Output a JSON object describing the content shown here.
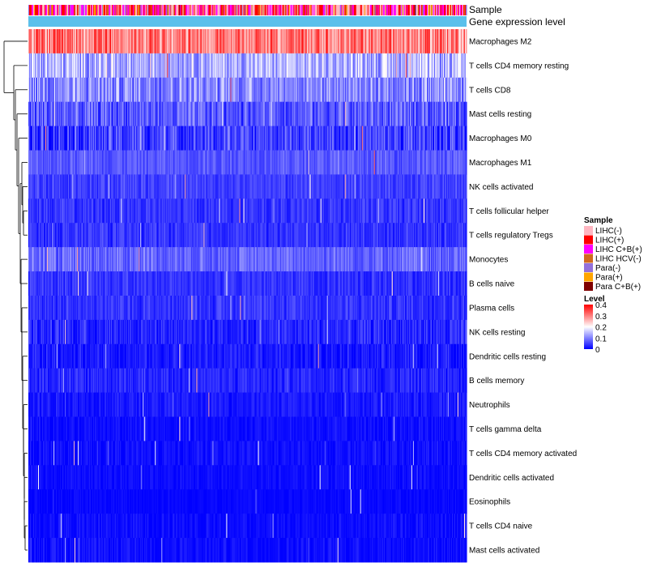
{
  "chart_data": {
    "type": "heatmap",
    "title": "",
    "annotation_tracks": [
      {
        "name": "Sample",
        "label": "Sample"
      },
      {
        "name": "Gene expression level",
        "label": "Gene expression level",
        "color": "#5bc0eb"
      }
    ],
    "rows": [
      {
        "name": "Macrophages M2",
        "mean": 0.3,
        "spread": 0.08
      },
      {
        "name": "T cells CD4 memory resting",
        "mean": 0.14,
        "spread": 0.07
      },
      {
        "name": "T cells CD8",
        "mean": 0.11,
        "spread": 0.07
      },
      {
        "name": "Mast cells resting",
        "mean": 0.07,
        "spread": 0.06
      },
      {
        "name": "Macrophages M0",
        "mean": 0.05,
        "spread": 0.06
      },
      {
        "name": "Macrophages M1",
        "mean": 0.07,
        "spread": 0.03
      },
      {
        "name": "NK cells activated",
        "mean": 0.05,
        "spread": 0.03
      },
      {
        "name": "T cells follicular helper",
        "mean": 0.04,
        "spread": 0.03
      },
      {
        "name": "T cells regulatory  Tregs",
        "mean": 0.04,
        "spread": 0.03
      },
      {
        "name": "Monocytes",
        "mean": 0.08,
        "spread": 0.04
      },
      {
        "name": "B cells naive",
        "mean": 0.04,
        "spread": 0.03
      },
      {
        "name": "Plasma cells",
        "mean": 0.04,
        "spread": 0.03
      },
      {
        "name": "NK cells resting",
        "mean": 0.03,
        "spread": 0.04
      },
      {
        "name": "Dendritic cells resting",
        "mean": 0.02,
        "spread": 0.03
      },
      {
        "name": "B cells memory",
        "mean": 0.03,
        "spread": 0.03
      },
      {
        "name": "Neutrophils",
        "mean": 0.02,
        "spread": 0.02
      },
      {
        "name": "T cells gamma delta",
        "mean": 0.01,
        "spread": 0.02
      },
      {
        "name": "T cells CD4 memory activated",
        "mean": 0.01,
        "spread": 0.02
      },
      {
        "name": "Dendritic cells activated",
        "mean": 0.01,
        "spread": 0.015
      },
      {
        "name": "Eosinophils",
        "mean": 0.005,
        "spread": 0.012
      },
      {
        "name": "T cells CD4 naive",
        "mean": 0.01,
        "spread": 0.02
      },
      {
        "name": "Mast cells activated",
        "mean": 0.01,
        "spread": 0.02
      }
    ],
    "n_samples": 540,
    "sample_legend": {
      "title": "Sample",
      "entries": [
        {
          "label": "LIHC(-)",
          "color": "#ffb6c1"
        },
        {
          "label": "LIHC(+)",
          "color": "#ff0000"
        },
        {
          "label": "LIHC C+B(+)",
          "color": "#ff00ff"
        },
        {
          "label": "LIHC HCV(-)",
          "color": "#d2691e"
        },
        {
          "label": "Para(-)",
          "color": "#9370db"
        },
        {
          "label": "Para(+)",
          "color": "#ffa500"
        },
        {
          "label": "Para C+B(+)",
          "color": "#800000"
        }
      ]
    },
    "level_legend": {
      "title": "Level",
      "range": [
        0,
        0.4
      ],
      "ticks": [
        "0.4",
        "0.3",
        "0.2",
        "0.1",
        "0"
      ],
      "colors": {
        "low": "#0000ff",
        "mid": "#ffffff",
        "high": "#ff0000"
      }
    }
  }
}
